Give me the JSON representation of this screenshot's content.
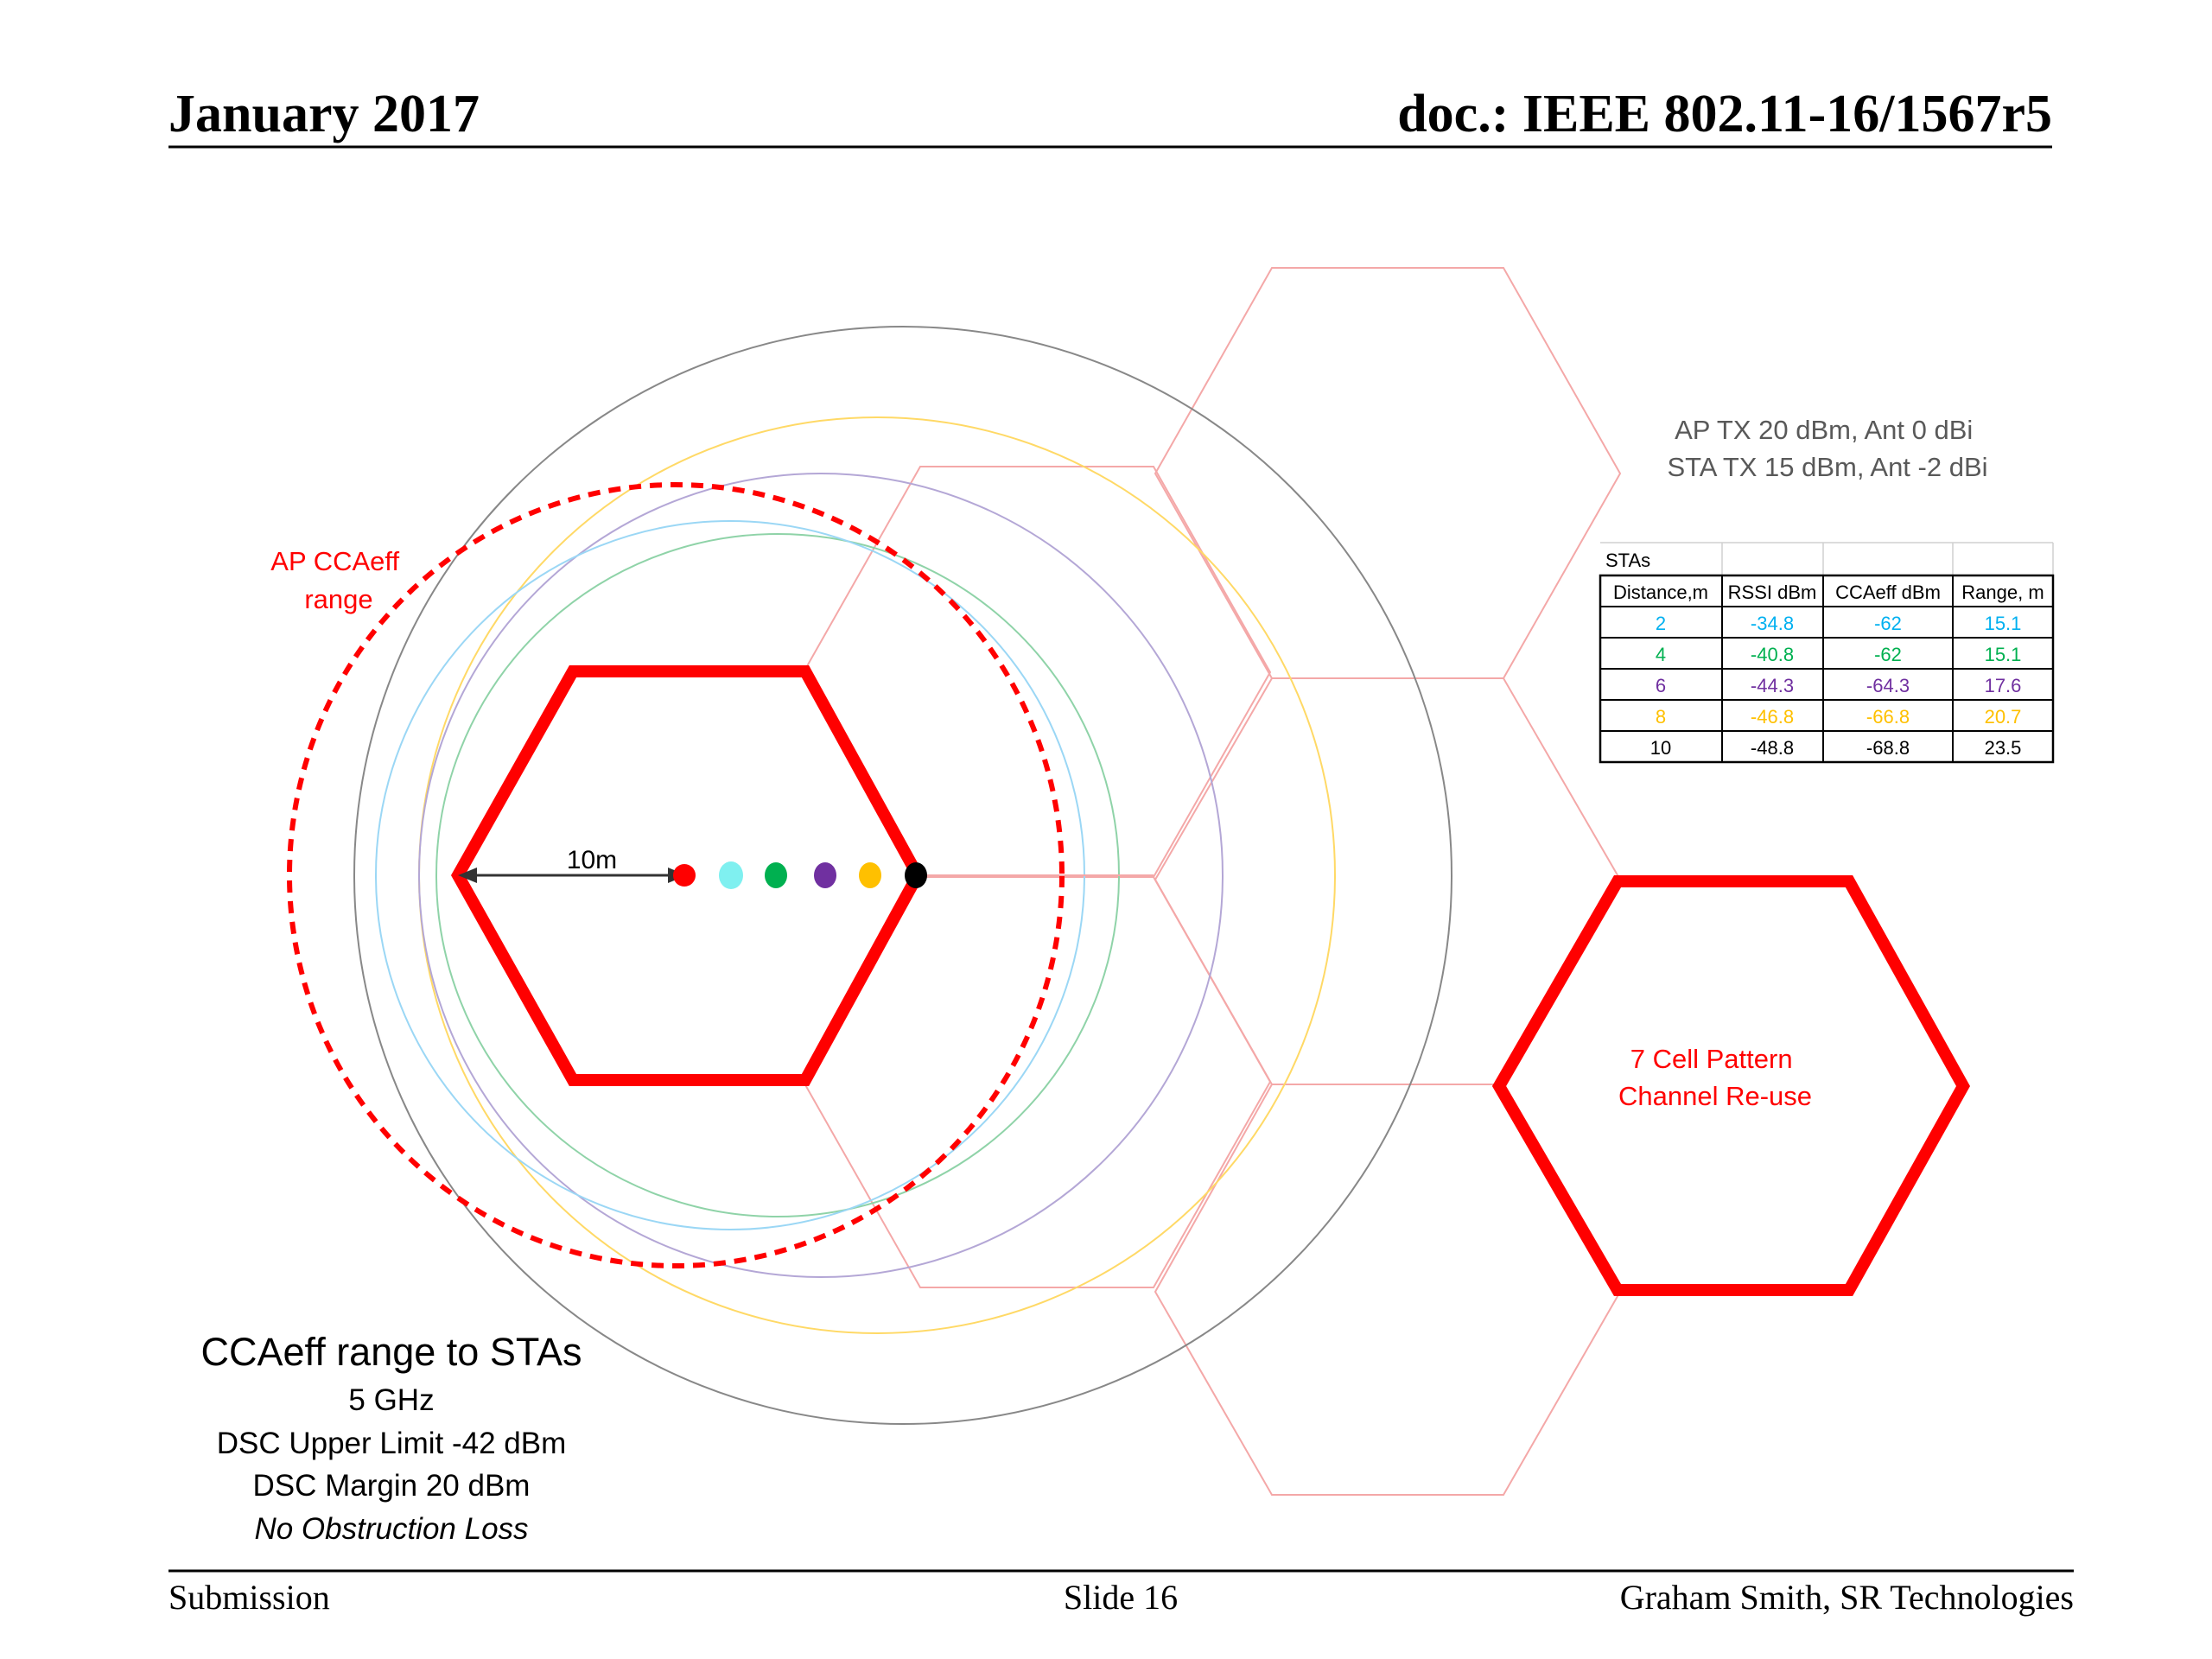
{
  "header": {
    "date": "January 2017",
    "doc_id": "doc.: IEEE 802.11-16/1567r5"
  },
  "footer": {
    "left": "Submission",
    "center": "Slide 16",
    "right": "Graham Smith, SR Technologies"
  },
  "diagram": {
    "ap_range_label": [
      "AP CCAeff",
      "range"
    ],
    "distance_label": "10m",
    "tx_info": [
      "AP TX 20 dBm, Ant 0 dBi",
      "STA TX 15 dBm, Ant -2 dBi"
    ],
    "pattern_label": [
      "7 Cell Pattern",
      "Channel Re-use"
    ],
    "caption": {
      "title": "CCAeff range to STAs",
      "lines": [
        "5 GHz",
        "DSC Upper Limit -42 dBm",
        "DSC Margin 20 dBm"
      ],
      "italic": "No Obstruction Loss"
    },
    "colors": {
      "red": "#ff0000",
      "cyan": "#00b0f0",
      "green": "#00b050",
      "purple": "#7030a0",
      "orange": "#ffc000",
      "black": "#000000",
      "light_red": "#f4a8a8"
    }
  },
  "table": {
    "caption": "STAs",
    "headers": [
      "Distance,m",
      "RSSI dBm",
      "CCAeff dBm",
      "Range, m"
    ],
    "rows": [
      {
        "values": [
          "2",
          "-34.8",
          "-62",
          "15.1"
        ],
        "color": "#00b0f0"
      },
      {
        "values": [
          "4",
          "-40.8",
          "-62",
          "15.1"
        ],
        "color": "#00b050"
      },
      {
        "values": [
          "6",
          "-44.3",
          "-64.3",
          "17.6"
        ],
        "color": "#7030a0"
      },
      {
        "values": [
          "8",
          "-46.8",
          "-66.8",
          "20.7"
        ],
        "color": "#ffc000"
      },
      {
        "values": [
          "10",
          "-48.8",
          "-68.8",
          "23.5"
        ],
        "color": "#000000"
      }
    ]
  }
}
